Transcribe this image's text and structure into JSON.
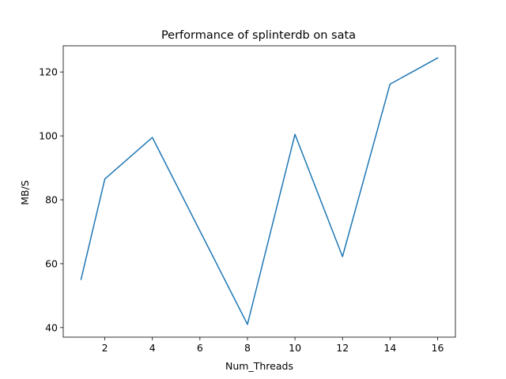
{
  "chart_data": {
    "type": "line",
    "title": "Performance of splinterdb on sata",
    "xlabel": "Num_Threads",
    "ylabel": "MB/S",
    "xlim": [
      0.25,
      16.75
    ],
    "ylim": [
      37.0,
      128.2
    ],
    "xticks": [
      2,
      4,
      6,
      8,
      10,
      12,
      14,
      16
    ],
    "yticks": [
      40,
      60,
      80,
      100,
      120
    ],
    "grid": false,
    "legend": "none",
    "series": [
      {
        "color": "#1f77b4",
        "x": [
          1,
          2,
          4,
          8,
          10,
          12,
          14,
          16
        ],
        "y": [
          55.1,
          86.5,
          99.5,
          41.0,
          100.5,
          62.2,
          116.2,
          124.4
        ]
      }
    ]
  }
}
